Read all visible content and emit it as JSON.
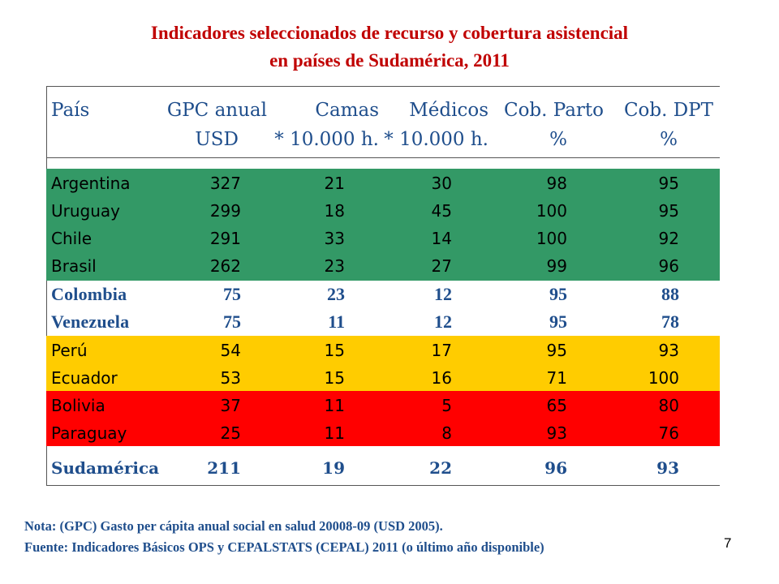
{
  "title": {
    "line1": "Indicadores seleccionados de recurso y cobertura asistencial",
    "line2": "en países de Sudamérica, 2011"
  },
  "table": {
    "headers": {
      "row1": [
        "País",
        "GPC anual",
        "Camas",
        "Médicos",
        "Cob. Parto",
        "Cob. DPT"
      ],
      "row2": [
        "",
        "USD",
        "* 10.000 h.",
        "* 10.000 h.",
        "%",
        "%"
      ]
    },
    "band_colors": {
      "green": "#339966",
      "yellow": "#ffcc00",
      "red": "#ff0000",
      "header_text": "#1f4e8c"
    },
    "rows": [
      {
        "pais": "Argentina",
        "gpc": "327",
        "camas": "21",
        "medicos": "30",
        "parto": "98",
        "dpt": "95"
      },
      {
        "pais": "Uruguay",
        "gpc": "299",
        "camas": "18",
        "medicos": "45",
        "parto": "100",
        "dpt": "95"
      },
      {
        "pais": "Chile",
        "gpc": "291",
        "camas": "33",
        "medicos": "14",
        "parto": "100",
        "dpt": "92"
      },
      {
        "pais": "Brasil",
        "gpc": "262",
        "camas": "23",
        "medicos": "27",
        "parto": "99",
        "dpt": "96"
      },
      {
        "pais": "Colombia",
        "gpc": "75",
        "camas": "23",
        "medicos": "12",
        "parto": "95",
        "dpt": "88"
      },
      {
        "pais": "Venezuela",
        "gpc": "75",
        "camas": "11",
        "medicos": "12",
        "parto": "95",
        "dpt": "78"
      },
      {
        "pais": "Perú",
        "gpc": "54",
        "camas": "15",
        "medicos": "17",
        "parto": "95",
        "dpt": "93"
      },
      {
        "pais": "Ecuador",
        "gpc": "53",
        "camas": "15",
        "medicos": "16",
        "parto": "71",
        "dpt": "100"
      },
      {
        "pais": "Bolivia",
        "gpc": "37",
        "camas": "11",
        "medicos": "5",
        "parto": "65",
        "dpt": "80"
      },
      {
        "pais": "Paraguay",
        "gpc": "25",
        "camas": "11",
        "medicos": "8",
        "parto": "93",
        "dpt": "76"
      }
    ],
    "total": {
      "pais": "Sudamérica",
      "gpc": "211",
      "camas": "19",
      "medicos": "22",
      "parto": "96",
      "dpt": "93"
    }
  },
  "notes": {
    "nota": "Nota: (GPC) Gasto per cápita anual social en salud 20008-09 (USD 2005).",
    "fuente": "Fuente: Indicadores Básicos OPS y CEPALSTATS (CEPAL) 2011 (o último año disponible)"
  },
  "page_number": "7"
}
